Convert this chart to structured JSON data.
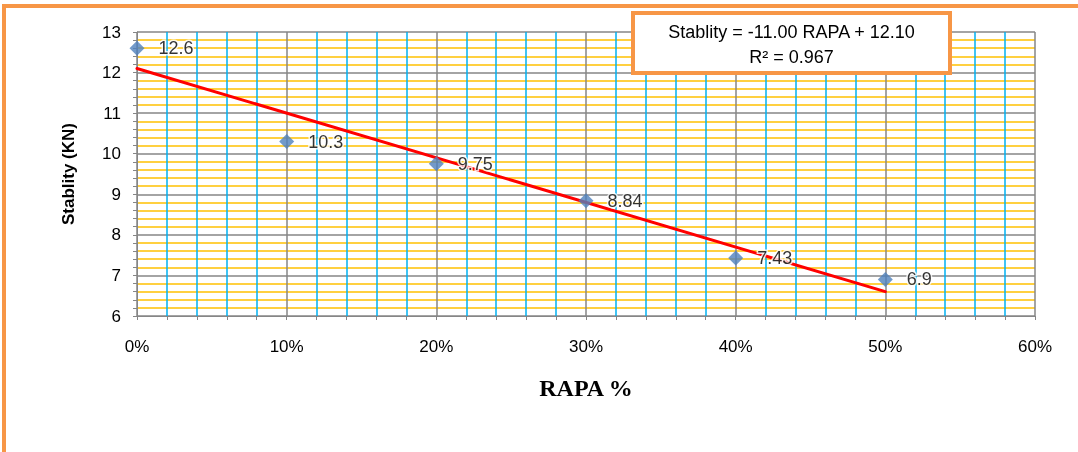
{
  "chart_data": {
    "type": "scatter",
    "xlabel": "RAPA %",
    "ylabel": "Stablity (KN)",
    "x": [
      0,
      0.1,
      0.2,
      0.3,
      0.4,
      0.5
    ],
    "series": [
      {
        "color": "#4f81bd",
        "marker": "diamond",
        "values": [
          12.6,
          10.3,
          9.75,
          8.84,
          7.43,
          6.9
        ],
        "value_labels": [
          "12.6",
          "10.3",
          "9.75",
          "8.84",
          "7.43",
          "6.9"
        ]
      },
      {
        "type": "line",
        "color": "#ff0000",
        "marker": "none",
        "line_style": "solid",
        "x": [
          0,
          0.5
        ],
        "values": [
          12.1,
          6.6
        ]
      }
    ],
    "xlim": [
      0,
      0.6
    ],
    "xticks": [
      {
        "value": 0,
        "label": "0%"
      },
      {
        "value": 0.02,
        "label": null
      },
      {
        "value": 0.04,
        "label": null
      },
      {
        "value": 0.06,
        "label": null
      },
      {
        "value": 0.08,
        "label": null
      },
      {
        "value": 0.1,
        "label": "10%"
      },
      {
        "value": 0.12,
        "label": null
      },
      {
        "value": 0.14,
        "label": null
      },
      {
        "value": 0.16,
        "label": null
      },
      {
        "value": 0.18,
        "label": null
      },
      {
        "value": 0.2,
        "label": "20%"
      },
      {
        "value": 0.22,
        "label": null
      },
      {
        "value": 0.24,
        "label": null
      },
      {
        "value": 0.26,
        "label": null
      },
      {
        "value": 0.28,
        "label": null
      },
      {
        "value": 0.3,
        "label": "30%"
      },
      {
        "value": 0.32,
        "label": null
      },
      {
        "value": 0.34,
        "label": null
      },
      {
        "value": 0.36,
        "label": null
      },
      {
        "value": 0.38,
        "label": null
      },
      {
        "value": 0.4,
        "label": "40%"
      },
      {
        "value": 0.42,
        "label": null
      },
      {
        "value": 0.44,
        "label": null
      },
      {
        "value": 0.46,
        "label": null
      },
      {
        "value": 0.48,
        "label": null
      },
      {
        "value": 0.5,
        "label": "50%"
      },
      {
        "value": 0.52,
        "label": null
      },
      {
        "value": 0.54,
        "label": null
      },
      {
        "value": 0.56,
        "label": null
      },
      {
        "value": 0.58,
        "label": null
      },
      {
        "value": 0.6,
        "label": "60%"
      }
    ],
    "ylim": [
      6,
      13
    ],
    "yticks": [
      6,
      {
        "value": 6.2,
        "label": null
      },
      {
        "value": 6.4,
        "label": null
      },
      {
        "value": 6.6,
        "label": null
      },
      {
        "value": 6.8,
        "label": null
      },
      7,
      {
        "value": 7.2,
        "label": null
      },
      {
        "value": 7.4,
        "label": null
      },
      {
        "value": 7.6,
        "label": null
      },
      {
        "value": 7.8,
        "label": null
      },
      8,
      {
        "value": 8.2,
        "label": null
      },
      {
        "value": 8.4,
        "label": null
      },
      {
        "value": 8.6,
        "label": null
      },
      {
        "value": 8.8,
        "label": null
      },
      9,
      {
        "value": 9.2,
        "label": null
      },
      {
        "value": 9.4,
        "label": null
      },
      {
        "value": 9.6,
        "label": null
      },
      {
        "value": 9.8,
        "label": null
      },
      10,
      {
        "value": 10.2,
        "label": null
      },
      {
        "value": 10.4,
        "label": null
      },
      {
        "value": 10.6,
        "label": null
      },
      {
        "value": 10.8,
        "label": null
      },
      11,
      {
        "value": 11.2,
        "label": null
      },
      {
        "value": 11.4,
        "label": null
      },
      {
        "value": 11.6,
        "label": null
      },
      {
        "value": 11.8,
        "label": null
      },
      12,
      {
        "value": 12.2,
        "label": null
      },
      {
        "value": 12.4,
        "label": null
      },
      {
        "value": 12.6,
        "label": null
      },
      {
        "value": 12.8,
        "label": null
      },
      13
    ],
    "grid": true,
    "annotations": [
      "Stablity = -11.00 RAPA + 12.10",
      "R² = 0.967"
    ]
  }
}
